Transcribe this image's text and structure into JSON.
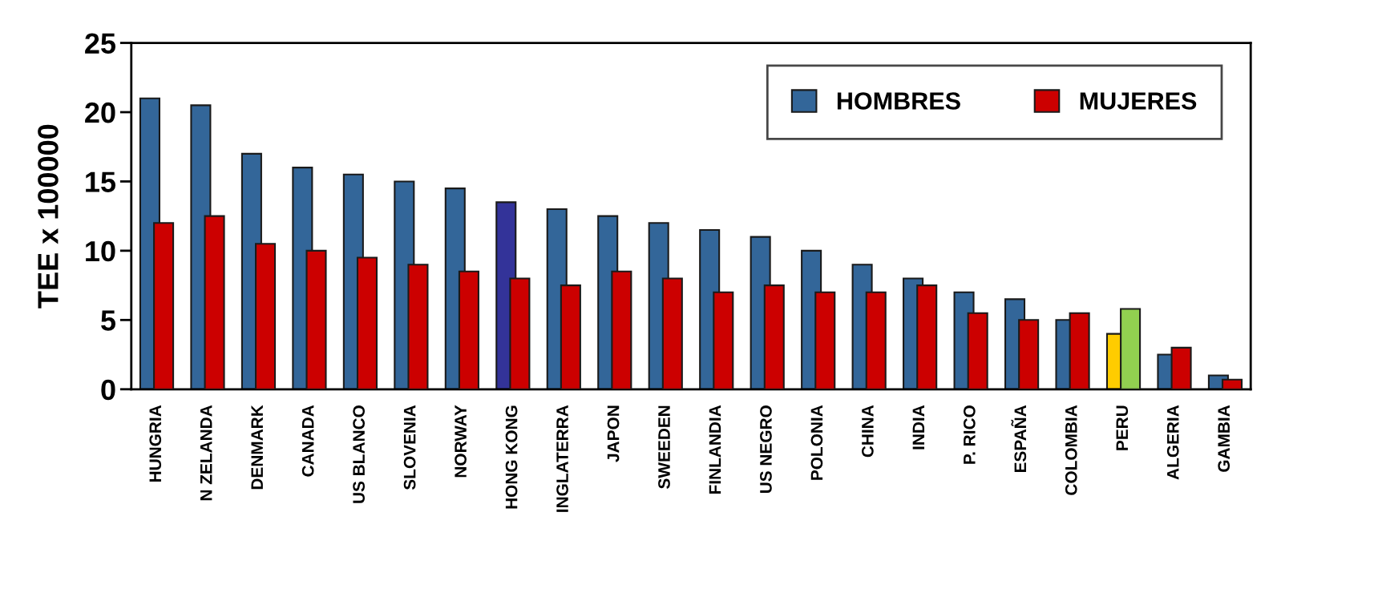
{
  "chart_data": {
    "type": "bar",
    "ylabel": "TEE x 100000",
    "categories": [
      "HUNGRIA",
      "N ZELANDA",
      "DENMARK",
      "CANADA",
      "US BLANCO",
      "SLOVENIA",
      "NORWAY",
      "HONG KONG",
      "INGLATERRA",
      "JAPON",
      "SWEEDEN",
      "FINLANDIA",
      "US NEGRO",
      "POLONIA",
      "CHINA",
      "INDIA",
      "P. RICO",
      "ESPAÑA",
      "COLOMBIA",
      "PERU",
      "ALGERIA",
      "GAMBIA"
    ],
    "series": [
      {
        "name": "HOMBRES",
        "color": "#336699",
        "colors": [
          "#336699",
          "#336699",
          "#336699",
          "#336699",
          "#336699",
          "#336699",
          "#336699",
          "#333399",
          "#336699",
          "#336699",
          "#336699",
          "#336699",
          "#336699",
          "#336699",
          "#336699",
          "#336699",
          "#336699",
          "#336699",
          "#336699",
          "#ffcc00",
          "#336699",
          "#336699"
        ],
        "values": [
          21,
          20.5,
          17,
          16,
          15.5,
          15,
          14.5,
          13.5,
          13,
          12.5,
          12,
          11.5,
          11,
          10,
          9,
          8,
          7,
          6.5,
          5,
          4,
          2.5,
          1
        ]
      },
      {
        "name": "MUJERES",
        "color": "#cc0000",
        "colors": [
          "#cc0000",
          "#cc0000",
          "#cc0000",
          "#cc0000",
          "#cc0000",
          "#cc0000",
          "#cc0000",
          "#cc0000",
          "#cc0000",
          "#cc0000",
          "#cc0000",
          "#cc0000",
          "#cc0000",
          "#cc0000",
          "#cc0000",
          "#cc0000",
          "#cc0000",
          "#cc0000",
          "#cc0000",
          "#92d050",
          "#cc0000",
          "#cc0000"
        ],
        "values": [
          12,
          12.5,
          10.5,
          10,
          9.5,
          9,
          8.5,
          8,
          7.5,
          8.5,
          8,
          7,
          7.5,
          7,
          7,
          7.5,
          5.5,
          5,
          5.5,
          5.8,
          3,
          0.7
        ]
      }
    ],
    "ylim": [
      0,
      25
    ],
    "yticks": [
      0,
      5,
      10,
      15,
      20,
      25
    ],
    "grid": false,
    "legend": "top right"
  }
}
